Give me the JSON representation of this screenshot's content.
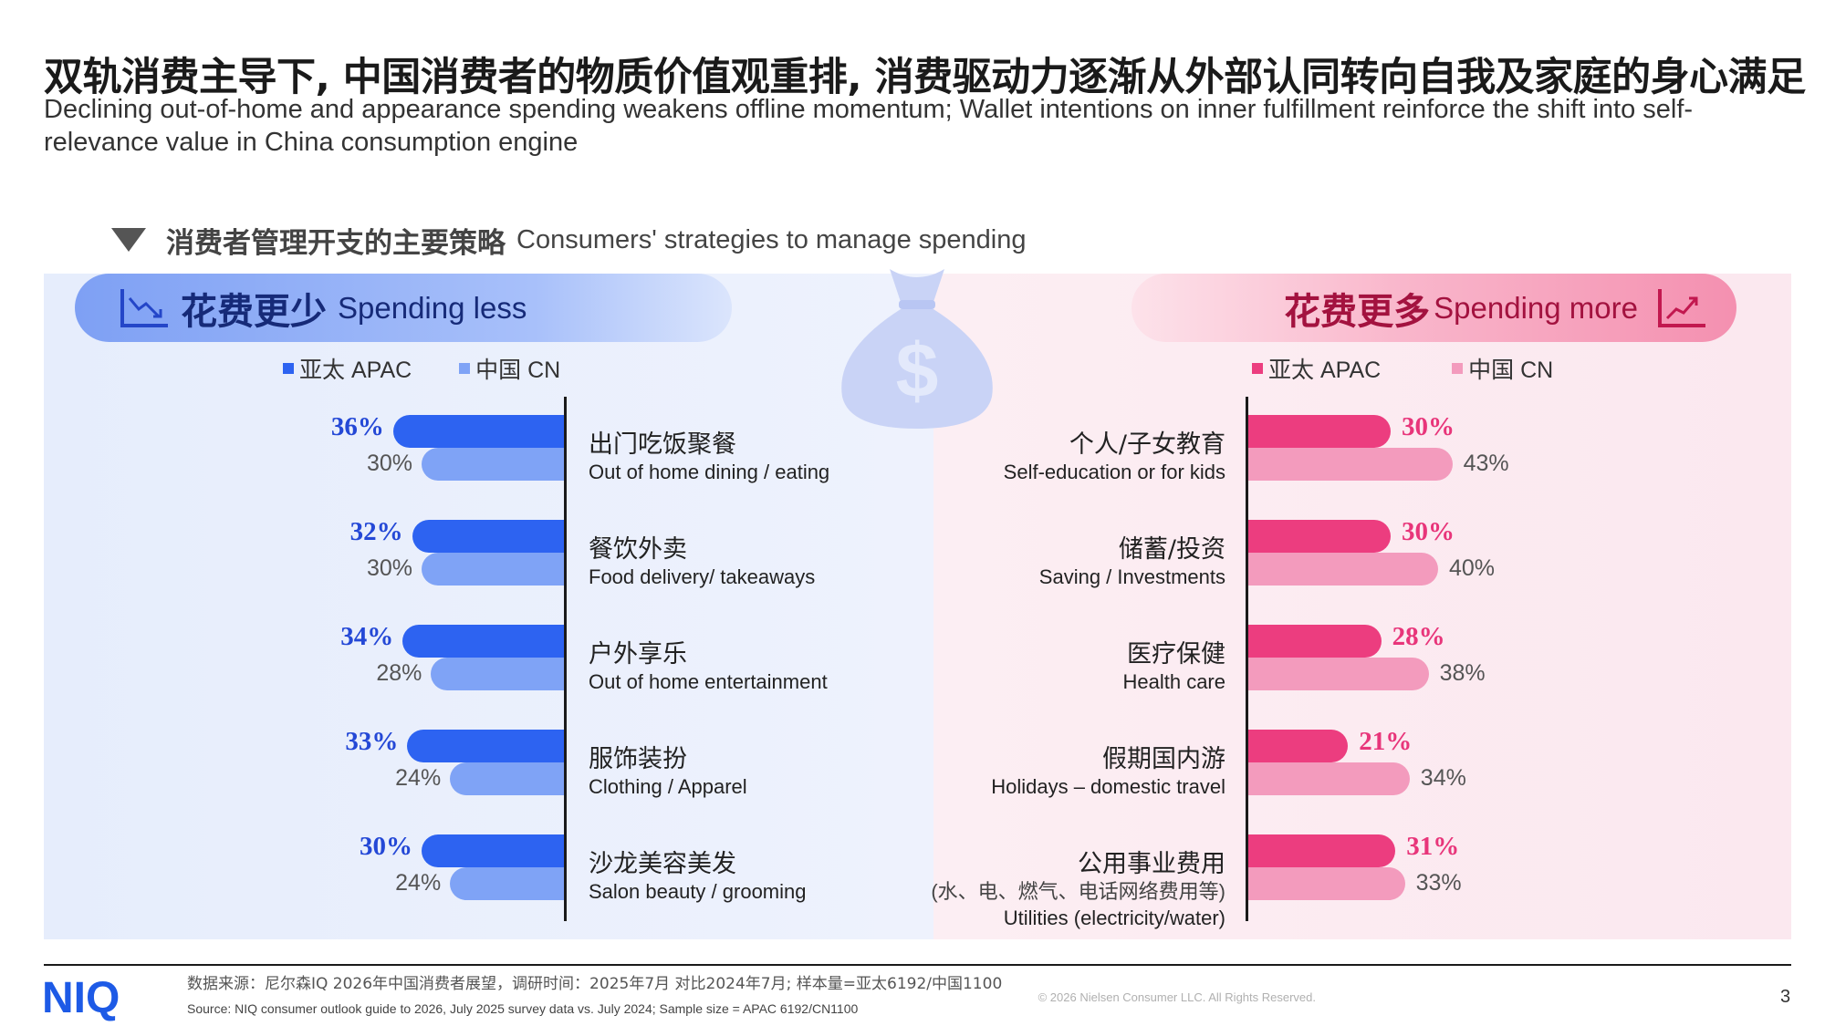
{
  "title": "双轨消费主导下, 中国消费者的物质价值观重排, 消费驱动力逐渐从外部认同转向自我及家庭的身心满足",
  "subtitle": "Declining out-of-home and appearance spending weakens offline momentum; Wallet intentions on inner fulfillment reinforce the shift into self-relevance value in China consumption engine",
  "section": {
    "title_zh": "消费者管理开支的主要策略",
    "title_en": "Consumers' strategies to manage spending"
  },
  "colors": {
    "apac_blue": "#2d63f1",
    "cn_blue": "#7fa3f6",
    "apac_pink": "#ec3d7f",
    "cn_pink": "#f39bbd",
    "blue_label": "#2448d6",
    "pink_label": "#e8357a"
  },
  "left": {
    "header_zh": "花费更少",
    "header_en": "Spending less",
    "icon": "trend-down-chart-icon",
    "legend": [
      {
        "label": "亚太 APAC"
      },
      {
        "label": "中国 CN"
      }
    ]
  },
  "right": {
    "header_zh": "花费更多",
    "header_en": "Spending more",
    "icon": "trend-up-chart-icon",
    "legend": [
      {
        "label": "亚太 APAC"
      },
      {
        "label": "中国 CN"
      }
    ]
  },
  "chart_data": [
    {
      "type": "bar",
      "orientation": "horizontal",
      "direction": "leftward",
      "series": [
        {
          "name": "亚太 APAC",
          "values": [
            36,
            32,
            34,
            33,
            30
          ]
        },
        {
          "name": "中国 CN",
          "values": [
            30,
            30,
            28,
            24,
            24
          ]
        }
      ],
      "categories": [
        {
          "zh": "出门吃饭聚餐",
          "en": "Out of home dining / eating"
        },
        {
          "zh": "餐饮外卖",
          "en": "Food delivery/ takeaways"
        },
        {
          "zh": "户外享乐",
          "en": "Out of home entertainment"
        },
        {
          "zh": "服饰装扮",
          "en": "Clothing / Apparel"
        },
        {
          "zh": "沙龙美容美发",
          "en": "Salon beauty / grooming"
        }
      ],
      "labels_apac": [
        "36%",
        "32%",
        "34%",
        "33%",
        "30%"
      ],
      "labels_cn": [
        "30%",
        "30%",
        "28%",
        "24%",
        "24%"
      ]
    },
    {
      "type": "bar",
      "orientation": "horizontal",
      "direction": "rightward",
      "series": [
        {
          "name": "亚太 APAC",
          "values": [
            30,
            30,
            28,
            21,
            31
          ]
        },
        {
          "name": "中国 CN",
          "values": [
            43,
            40,
            38,
            34,
            33
          ]
        }
      ],
      "categories": [
        {
          "zh": "个人/子女教育",
          "en": "Self-education or for kids"
        },
        {
          "zh": "储蓄/投资",
          "en": "Saving / Investments"
        },
        {
          "zh": "医疗保健",
          "en": "Health care"
        },
        {
          "zh": "假期国内游",
          "en": "Holidays – domestic travel"
        },
        {
          "zh": "公用事业费用",
          "note": "(水、电、燃气、电话网络费用等)",
          "en": "Utilities (electricity/water)"
        }
      ],
      "labels_apac": [
        "30%",
        "30%",
        "28%",
        "21%",
        "31%"
      ],
      "labels_cn": [
        "43%",
        "40%",
        "38%",
        "34%",
        "33%"
      ]
    }
  ],
  "footer": {
    "logo_text": "NIQ",
    "source_zh": "数据来源：尼尔森IQ 2026年中国消费者展望，调研时间：2025年7月 对比2024年7月; 样本量=亚太6192/中国1100",
    "source_en": "Source: NIQ consumer outlook guide to 2026, July 2025 survey data vs. July 2024;   Sample size = APAC 6192/CN1100",
    "copyright": "© 2026 Nielsen Consumer LLC. All Rights Reserved.",
    "page": "3"
  }
}
